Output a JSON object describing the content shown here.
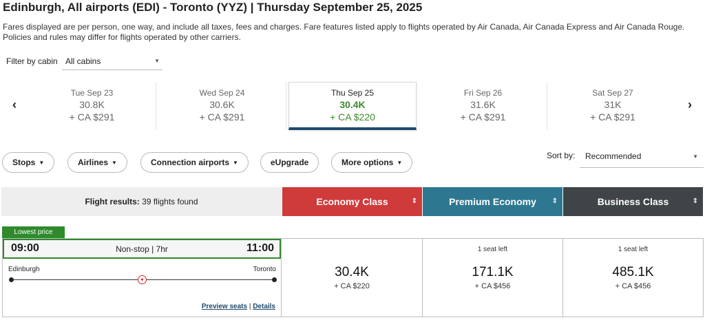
{
  "header": {
    "title": "Edinburgh, All airports (EDI) - Toronto (YYZ)  |  Thursday September 25, 2025",
    "disclaimer": "Fares displayed are per person, one way, and include all taxes, fees and charges. Fare features listed apply to flights operated by Air Canada, Air Canada Express and Air Canada Rouge. Policies and rules may differ for flights operated by other carriers."
  },
  "filter": {
    "label": "Filter by cabin",
    "value": "All cabins"
  },
  "dates": [
    {
      "day": "Tue Sep 23",
      "points": "30.8K",
      "cash": "+ CA $291",
      "active": false
    },
    {
      "day": "Wed Sep 24",
      "points": "30.6K",
      "cash": "+ CA $291",
      "active": false
    },
    {
      "day": "Thu Sep 25",
      "points": "30.4K",
      "cash": "+ CA $220",
      "active": true
    },
    {
      "day": "Fri Sep 26",
      "points": "31.6K",
      "cash": "+ CA $291",
      "active": false
    },
    {
      "day": "Sat Sep 27",
      "points": "31K",
      "cash": "+ CA $291",
      "active": false
    }
  ],
  "filters": {
    "stops": "Stops",
    "airlines": "Airlines",
    "connection": "Connection airports",
    "eupgrade": "eUpgrade",
    "more": "More options"
  },
  "sort": {
    "label": "Sort by:",
    "value": "Recommended"
  },
  "results": {
    "label": "Flight results:",
    "count_text": "39 flights found"
  },
  "cabins": [
    {
      "name": "Economy Class",
      "color": "#cf3a3a"
    },
    {
      "name": "Premium Economy",
      "color": "#2e7790"
    },
    {
      "name": "Business Class",
      "color": "#3f4447"
    }
  ],
  "flight": {
    "badge": "Lowest price",
    "depart": "09:00",
    "arrive": "11:00",
    "summary": "Non-stop | 7hr",
    "from": "Edinburgh",
    "to": "Toronto",
    "preview_seats": "Preview seats",
    "separator": "|",
    "details": "Details",
    "fares": [
      {
        "seats": "",
        "points": "30.4K",
        "cash": "+ CA $220"
      },
      {
        "seats": "1 seat left",
        "points": "171.1K",
        "cash": "+ CA $456"
      },
      {
        "seats": "1 seat left",
        "points": "485.1K",
        "cash": "+ CA $456"
      }
    ]
  },
  "icons": {
    "prev": "chevron-left-icon",
    "next": "chevron-right-icon",
    "sort": "sort-updown-icon",
    "airline": "maple-leaf-icon"
  }
}
